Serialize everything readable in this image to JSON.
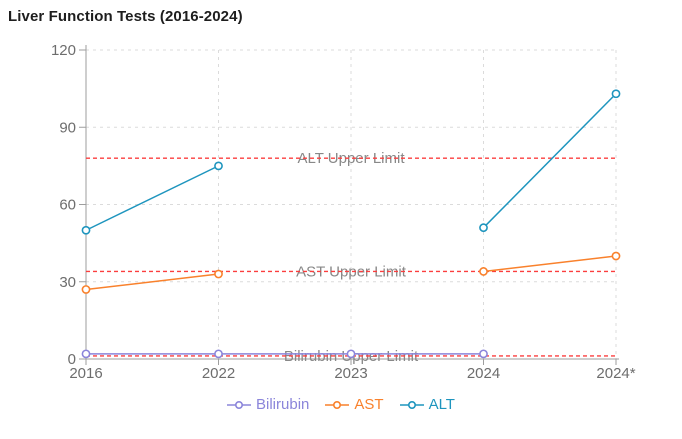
{
  "page": {
    "title": "Liver Function Tests (2016-2024)"
  },
  "chart_data": {
    "type": "line",
    "title": "Liver Function Tests (2016-2024)",
    "categories": [
      "2016",
      "2022",
      "2023",
      "2024",
      "2024*"
    ],
    "series": [
      {
        "name": "Bilirubin",
        "color": "#8B85DA",
        "values": [
          2,
          2,
          2,
          2,
          null
        ]
      },
      {
        "name": "AST",
        "color": "#F9812C",
        "values": [
          27,
          33,
          null,
          34,
          40
        ]
      },
      {
        "name": "ALT",
        "color": "#1E95BE",
        "values": [
          50,
          75,
          null,
          51,
          103
        ]
      }
    ],
    "limit_lines": [
      {
        "label": "ALT Upper Limit",
        "value": 78,
        "color": "#FB3E3E"
      },
      {
        "label": "AST Upper Limit",
        "value": 34,
        "color": "#FB3E3E"
      },
      {
        "label": "Bilirubin Upper Limit",
        "value": 1.2,
        "color": "#FB3E3E"
      }
    ],
    "ylim": [
      0,
      120
    ],
    "yticks": [
      0,
      30,
      60,
      90,
      120
    ],
    "grid": true,
    "legend_position": "bottom",
    "xlabel": "",
    "ylabel": ""
  },
  "style_colors": {
    "gridline": "#DBDBDB",
    "axis": "#9E9E9E",
    "tick_label": "#6D6D6D",
    "limit_label": "#888888",
    "marker_fill": "#FFFFFF"
  }
}
